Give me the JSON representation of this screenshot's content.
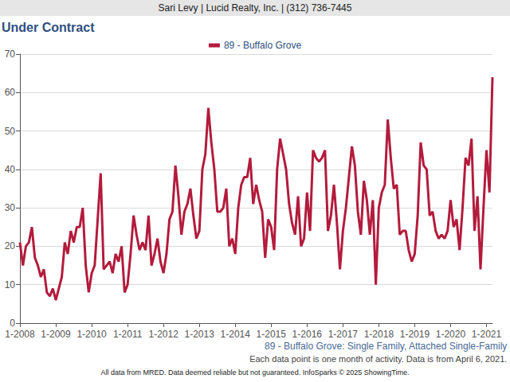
{
  "chart_data": {
    "type": "line",
    "header": "Sari Levy | Lucid Realty, Inc. | (312) 736-7445",
    "title": "Under Contract",
    "notes": [
      "89 - Buffalo Grove: Single Family, Attached Single-Family",
      "Each data point is one month of activity. Data is from April 6, 2021.",
      "All data from MRED. Data deemed reliable but not guaranteed. InfoSparks © 2025 ShowingTime."
    ],
    "categories": [
      "1-2008",
      null,
      null,
      null,
      null,
      null,
      null,
      null,
      null,
      null,
      null,
      null,
      "1-2009",
      null,
      null,
      null,
      null,
      null,
      null,
      null,
      null,
      null,
      null,
      null,
      "1-2010",
      null,
      null,
      null,
      null,
      null,
      null,
      null,
      null,
      null,
      null,
      null,
      "1-2011",
      null,
      null,
      null,
      null,
      null,
      null,
      null,
      null,
      null,
      null,
      null,
      "1-2012",
      null,
      null,
      null,
      null,
      null,
      null,
      null,
      null,
      null,
      null,
      null,
      "1-2013",
      null,
      null,
      null,
      null,
      null,
      null,
      null,
      null,
      null,
      null,
      null,
      "1-2014",
      null,
      null,
      null,
      null,
      null,
      null,
      null,
      null,
      null,
      null,
      null,
      "1-2015",
      null,
      null,
      null,
      null,
      null,
      null,
      null,
      null,
      null,
      null,
      null,
      "1-2016",
      null,
      null,
      null,
      null,
      null,
      null,
      null,
      null,
      null,
      null,
      null,
      "1-2017",
      null,
      null,
      null,
      null,
      null,
      null,
      null,
      null,
      null,
      null,
      null,
      "1-2018",
      null,
      null,
      null,
      null,
      null,
      null,
      null,
      null,
      null,
      null,
      null,
      "1-2019",
      null,
      null,
      null,
      null,
      null,
      null,
      null,
      null,
      null,
      null,
      null,
      "1-2020",
      null,
      null,
      null,
      null,
      null,
      null,
      null,
      null,
      null,
      null,
      null,
      "1-2021",
      null,
      null
    ],
    "series": [
      {
        "name": "89 - Buffalo Grove",
        "color": "#b31b3c",
        "values": [
          21,
          15,
          20,
          21,
          25,
          17,
          15,
          12,
          14,
          8,
          7,
          9,
          6,
          9,
          12,
          21,
          18,
          24,
          21,
          25,
          25,
          30,
          15,
          8,
          13,
          15,
          27,
          39,
          14,
          15,
          16,
          13,
          18,
          16,
          20,
          8,
          10,
          18,
          28,
          23,
          19,
          21,
          19,
          28,
          15,
          18,
          22,
          16,
          13,
          18,
          27,
          29,
          41,
          33,
          23,
          29,
          31,
          35,
          28,
          22,
          24,
          40,
          44,
          56,
          47,
          40,
          29,
          29,
          30,
          35,
          20,
          22,
          18,
          30,
          36,
          38,
          38,
          43,
          31,
          36,
          32,
          29,
          17,
          27,
          25,
          19,
          40,
          48,
          44,
          40,
          31,
          26,
          23,
          33,
          20,
          22,
          34,
          24,
          45,
          43,
          42,
          43,
          45,
          24,
          28,
          36,
          26,
          14,
          24,
          30,
          38,
          46,
          41,
          29,
          23,
          37,
          32,
          23,
          32,
          10,
          30,
          34,
          36,
          53,
          43,
          35,
          36,
          23,
          24,
          24,
          19,
          16,
          18,
          28,
          47,
          41,
          40,
          28,
          29,
          24,
          22,
          23,
          22,
          24,
          32,
          25,
          27,
          19,
          30,
          43,
          41,
          48,
          24,
          33,
          14,
          30,
          45,
          34,
          64
        ]
      }
    ],
    "ylim": [
      0,
      70
    ],
    "yticks": [
      0,
      10,
      20,
      30,
      40,
      50,
      60,
      70
    ],
    "grid": true,
    "legend": "top"
  }
}
